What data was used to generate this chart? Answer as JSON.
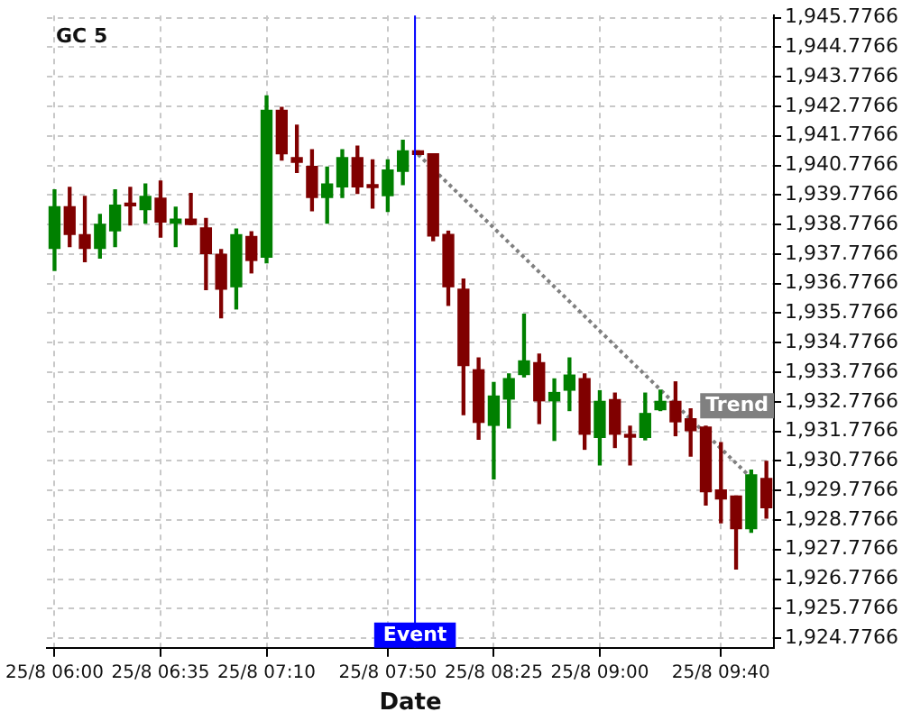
{
  "chart_data": {
    "type": "candlestick",
    "title": "GC 5",
    "xlabel": "Date",
    "categories": [
      "25/8 06:00",
      null,
      null,
      null,
      null,
      null,
      null,
      "25/8 06:35",
      null,
      null,
      null,
      null,
      null,
      null,
      "25/8 07:10",
      null,
      null,
      null,
      null,
      null,
      null,
      null,
      "25/8 07:50",
      null,
      null,
      null,
      null,
      null,
      null,
      "25/8 08:25",
      null,
      null,
      null,
      null,
      null,
      null,
      "25/8 09:00",
      null,
      null,
      null,
      null,
      null,
      null,
      null,
      "25/8 09:40",
      null,
      null,
      null
    ],
    "ohlc": [
      [
        1937.97,
        1939.95,
        1937.22,
        1939.38
      ],
      [
        1939.38,
        1940.03,
        1938.03,
        1938.44
      ],
      [
        1938.43,
        1939.73,
        1937.52,
        1937.97
      ],
      [
        1937.97,
        1939.12,
        1937.64,
        1938.78
      ],
      [
        1938.56,
        1939.95,
        1938.03,
        1939.43
      ],
      [
        1939.46,
        1940.03,
        1938.76,
        1939.41
      ],
      [
        1939.28,
        1940.15,
        1938.82,
        1939.73
      ],
      [
        1939.67,
        1940.25,
        1938.35,
        1938.86
      ],
      [
        1938.82,
        1939.36,
        1938.03,
        1938.96
      ],
      [
        1938.96,
        1939.83,
        1938.78,
        1938.78
      ],
      [
        1938.66,
        1938.98,
        1936.57,
        1937.79
      ],
      [
        1937.77,
        1937.93,
        1935.62,
        1936.59
      ],
      [
        1936.67,
        1938.62,
        1935.92,
        1938.43
      ],
      [
        1938.37,
        1938.53,
        1937.14,
        1937.56
      ],
      [
        1937.67,
        1943.13,
        1937.48,
        1942.64
      ],
      [
        1942.64,
        1942.74,
        1940.96,
        1941.17
      ],
      [
        1941.04,
        1942.14,
        1940.54,
        1940.88
      ],
      [
        1940.74,
        1941.31,
        1939.24,
        1939.69
      ],
      [
        1939.69,
        1940.72,
        1938.82,
        1940.15
      ],
      [
        1940.05,
        1941.31,
        1939.69,
        1941.04
      ],
      [
        1941.04,
        1941.43,
        1939.83,
        1940.05
      ],
      [
        1940.08,
        1940.96,
        1939.33,
        1940.03
      ],
      [
        1939.75,
        1940.96,
        1939.22,
        1940.62
      ],
      [
        1940.58,
        1941.63,
        1940.13,
        1941.27
      ],
      [
        1941.27,
        1941.27,
        1941.15,
        1941.15
      ],
      [
        1941.17,
        1941.17,
        1938.23,
        1938.39
      ],
      [
        1938.44,
        1938.55,
        1936.04,
        1936.67
      ],
      [
        1936.59,
        1936.93,
        1932.34,
        1934.0
      ],
      [
        1933.86,
        1934.26,
        1931.51,
        1932.08
      ],
      [
        1931.98,
        1933.43,
        1930.17,
        1932.97
      ],
      [
        1932.87,
        1933.72,
        1931.89,
        1933.56
      ],
      [
        1933.7,
        1935.74,
        1933.62,
        1934.16
      ],
      [
        1934.1,
        1934.39,
        1932.04,
        1932.81
      ],
      [
        1932.81,
        1933.55,
        1931.47,
        1933.09
      ],
      [
        1933.17,
        1934.26,
        1932.48,
        1933.68
      ],
      [
        1933.56,
        1933.72,
        1931.17,
        1931.68
      ],
      [
        1931.57,
        1933.15,
        1930.64,
        1932.79
      ],
      [
        1932.85,
        1933.07,
        1931.23,
        1931.68
      ],
      [
        1931.62,
        1931.95,
        1930.64,
        1931.58
      ],
      [
        1931.57,
        1933.07,
        1931.49,
        1932.38
      ],
      [
        1932.51,
        1933.17,
        1932.48,
        1932.79
      ],
      [
        1932.79,
        1933.45,
        1931.63,
        1932.1
      ],
      [
        1932.2,
        1932.54,
        1930.94,
        1931.8
      ],
      [
        1931.92,
        1931.95,
        1929.28,
        1929.73
      ],
      [
        1929.79,
        1931.39,
        1928.68,
        1929.49
      ],
      [
        1929.59,
        1929.59,
        1927.12,
        1928.48
      ],
      [
        1928.48,
        1930.46,
        1928.36,
        1930.3
      ],
      [
        1930.18,
        1930.76,
        1928.84,
        1929.19
      ]
    ],
    "colors": [
      "#008000",
      "#800000",
      "#800000",
      "#008000",
      "#008000",
      "#800000",
      "#008000",
      "#800000",
      "#008000",
      "#800000",
      "#800000",
      "#800000",
      "#008000",
      "#800000",
      "#008000",
      "#800000",
      "#800000",
      "#800000",
      "#008000",
      "#008000",
      "#800000",
      "#800000",
      "#008000",
      "#008000",
      "#800000",
      "#800000",
      "#800000",
      "#800000",
      "#800000",
      "#008000",
      "#008000",
      "#008000",
      "#800000",
      "#008000",
      "#008000",
      "#800000",
      "#008000",
      "#800000",
      "#800000",
      "#008000",
      "#008000",
      "#800000",
      "#800000",
      "#800000",
      "#800000",
      "#800000",
      "#008000",
      "#800000"
    ],
    "series": [
      {
        "name": "Trend",
        "type": "line",
        "color": "#808080",
        "line_style": "dotted",
        "values": [
          null,
          null,
          null,
          null,
          null,
          null,
          null,
          null,
          null,
          null,
          null,
          null,
          null,
          null,
          null,
          null,
          null,
          null,
          null,
          null,
          null,
          null,
          null,
          null,
          1941.15,
          null,
          null,
          null,
          null,
          null,
          null,
          null,
          null,
          null,
          null,
          null,
          null,
          null,
          null,
          null,
          null,
          null,
          null,
          null,
          null,
          null,
          1930.2,
          null
        ]
      }
    ],
    "annotations": [
      "Event"
    ],
    "ylim": [
      1924.45,
      1945.85
    ],
    "yticks": [
      {
        "value": 1924.7766,
        "label": "1,924.7766"
      },
      {
        "value": 1925.7766,
        "label": "1,925.7766"
      },
      {
        "value": 1926.7766,
        "label": "1,926.7766"
      },
      {
        "value": 1927.7766,
        "label": "1,927.7766"
      },
      {
        "value": 1928.7766,
        "label": "1,928.7766"
      },
      {
        "value": 1929.7766,
        "label": "1,929.7766"
      },
      {
        "value": 1930.7766,
        "label": "1,930.7766"
      },
      {
        "value": 1931.7766,
        "label": "1,931.7766"
      },
      {
        "value": 1932.7766,
        "label": "1,932.7766"
      },
      {
        "value": 1933.7766,
        "label": "1,933.7766"
      },
      {
        "value": 1934.7766,
        "label": "1,934.7766"
      },
      {
        "value": 1935.7766,
        "label": "1,935.7766"
      },
      {
        "value": 1936.7766,
        "label": "1,936.7766"
      },
      {
        "value": 1937.7766,
        "label": "1,937.7766"
      },
      {
        "value": 1938.7766,
        "label": "1,938.7766"
      },
      {
        "value": 1939.7766,
        "label": "1,939.7766"
      },
      {
        "value": 1940.7766,
        "label": "1,940.7766"
      },
      {
        "value": 1941.7766,
        "label": "1,941.7766"
      },
      {
        "value": 1942.7766,
        "label": "1,942.7766"
      },
      {
        "value": 1943.7766,
        "label": "1,943.7766"
      },
      {
        "value": 1944.7766,
        "label": "1,944.7766"
      },
      {
        "value": 1945.7766,
        "label": "1,945.7766"
      }
    ],
    "grid": true
  }
}
